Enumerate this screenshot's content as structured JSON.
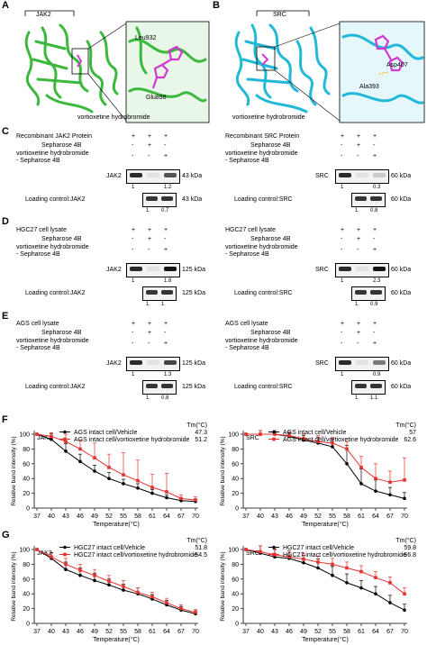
{
  "panel_letters": {
    "A": "A",
    "B": "B",
    "C": "C",
    "D": "D",
    "E": "E",
    "F": "F",
    "G": "G"
  },
  "structures": {
    "A": {
      "protein": "JAK2",
      "residue1": "Leu932",
      "residue2": "Glu898",
      "ligand": "vortioxetine hydrobromide",
      "color": "#3cb83c"
    },
    "B": {
      "protein": "SRC",
      "residue1": "Asp407",
      "residue2": "Ala393",
      "ligand": "vortioxetine hydrobromide",
      "color": "#22b8d8"
    }
  },
  "blots": {
    "C_left": {
      "header": "Recombinant JAK2 Protein",
      "rows": [
        {
          "label": "Sepharose 4B",
          "signs": [
            "-",
            "+",
            "-"
          ]
        },
        {
          "label": "vortioxetine hydrobromide\n- Sepharose 4B",
          "signs": [
            "-",
            "-",
            "+"
          ]
        }
      ],
      "target": "JAK2",
      "target_kda": "43 kDa",
      "target_q": [
        "1",
        "",
        "1.2"
      ],
      "loading": "Loading control:JAK2",
      "loading_kda": "43 kDa",
      "loading_q": [
        "1",
        "0.7"
      ],
      "header_signs": [
        "+",
        "+",
        "+"
      ]
    },
    "C_right": {
      "header": "Recombinant SRC Protein",
      "rows": [
        {
          "label": "Sepharose 4B",
          "signs": [
            "-",
            "+",
            "-"
          ]
        },
        {
          "label": "vortioxetine hydrobromide\n- Sepharose 4B",
          "signs": [
            "-",
            "-",
            "+"
          ]
        }
      ],
      "target": "SRC",
      "target_kda": "60 kDa",
      "target_q": [
        "1",
        "",
        "0.3"
      ],
      "loading": "Loading control:SRC",
      "loading_kda": "60 kDa",
      "loading_q": [
        "1",
        "0.8"
      ],
      "header_signs": [
        "+",
        "+",
        "+"
      ]
    },
    "D_left": {
      "header": "HGC27 cell lysate",
      "rows": [
        {
          "label": "Sepharose 4B",
          "signs": [
            "-",
            "+",
            "-"
          ]
        },
        {
          "label": "vortioxetine hydrobromide\n- Sepharose 4B",
          "signs": [
            "-",
            "-",
            "+"
          ]
        }
      ],
      "target": "JAK2",
      "target_kda": "125 kDa",
      "target_q": [
        "1",
        "",
        "1.8"
      ],
      "loading": "Loading control:JAK2",
      "loading_kda": "125 kDa",
      "loading_q": [
        "1",
        "1"
      ],
      "header_signs": [
        "+",
        "+",
        "+"
      ]
    },
    "D_right": {
      "header": "HGC27 cell lysate",
      "rows": [
        {
          "label": "Sepharose 4B",
          "signs": [
            "-",
            "+",
            "-"
          ]
        },
        {
          "label": "vortioxetine hydrobromide\n- Sepharose 4B",
          "signs": [
            "-",
            "-",
            "+"
          ]
        }
      ],
      "target": "SRC",
      "target_kda": "60 kDa",
      "target_q": [
        "1",
        "",
        "2.3"
      ],
      "loading": "Loading control:SRC",
      "loading_kda": "60 kDa",
      "loading_q": [
        "1",
        "0.9"
      ],
      "header_signs": [
        "+",
        "+",
        "+"
      ]
    },
    "E_left": {
      "header": "AGS cell lysate",
      "rows": [
        {
          "label": "Sepharose 4B",
          "signs": [
            "-",
            "+",
            "-"
          ]
        },
        {
          "label": "vortioxetine hydrobromide\n- Sepharose 4B",
          "signs": [
            "-",
            "-",
            "+"
          ]
        }
      ],
      "target": "JAK2",
      "target_kda": "125 kDa",
      "target_q": [
        "1",
        "",
        "1.3"
      ],
      "loading": "Loading control:JAK2",
      "loading_kda": "125 kDa",
      "loading_q": [
        "1",
        "0.8"
      ],
      "header_signs": [
        "+",
        "+",
        "+"
      ]
    },
    "E_right": {
      "header": "AGS cell lysate",
      "rows": [
        {
          "label": "Sepharose 4B",
          "signs": [
            "-",
            "+",
            "-"
          ]
        },
        {
          "label": "vortioxetine hydrobromide\n- Sepharose 4B",
          "signs": [
            "-",
            "-",
            "+"
          ]
        }
      ],
      "target": "SRC",
      "target_kda": "60 kDa",
      "target_q": [
        "1",
        "",
        "0.9"
      ],
      "loading": "Loading control:SRC",
      "loading_kda": "60 kDa",
      "loading_q": [
        "1",
        "1.1"
      ],
      "header_signs": [
        "+",
        "+",
        "+"
      ]
    }
  },
  "chart_data": [
    {
      "panel": "F",
      "type": "line",
      "title": "JAK2",
      "xlabel": "Temperature(°C)",
      "ylabel": "Relative band intensity (%)",
      "categories": [
        "37",
        "40",
        "43",
        "46",
        "49",
        "52",
        "55",
        "58",
        "61",
        "64",
        "67",
        "70"
      ],
      "ylim": [
        0,
        100
      ],
      "yticks": [
        0,
        20,
        40,
        60,
        80,
        100
      ],
      "tm_header": "Tm(°C)",
      "series": [
        {
          "name": "AGS intact cell/Vehicle",
          "tm": "47.3",
          "color": "#000000",
          "values": [
            100,
            93,
            77,
            63,
            50,
            40,
            33,
            27,
            20,
            14,
            10,
            9
          ],
          "err": [
            0,
            8,
            10,
            10,
            8,
            8,
            6,
            6,
            5,
            4,
            3,
            3
          ]
        },
        {
          "name": "AGS intact cell/vortioxetine hydrobromide",
          "tm": "51.2",
          "color": "#e8302c",
          "values": [
            100,
            97,
            90,
            80,
            68,
            55,
            45,
            37,
            28,
            22,
            13,
            11
          ],
          "err": [
            0,
            5,
            10,
            12,
            20,
            18,
            30,
            28,
            18,
            25,
            5,
            4
          ]
        }
      ]
    },
    {
      "panel": "F",
      "type": "line",
      "title": "SRC",
      "xlabel": "Temperature(°C)",
      "ylabel": "Relative band intensity (%)",
      "categories": [
        "37",
        "40",
        "43",
        "46",
        "49",
        "52",
        "55",
        "58",
        "61",
        "64",
        "67",
        "70"
      ],
      "ylim": [
        0,
        100
      ],
      "yticks": [
        0,
        20,
        40,
        60,
        80,
        100
      ],
      "tm_header": "Tm(°C)",
      "series": [
        {
          "name": "AGS intact cell/Vehicle",
          "tm": "57",
          "color": "#000000",
          "values": [
            100,
            100,
            100,
            97,
            92,
            88,
            83,
            60,
            33,
            23,
            18,
            13
          ],
          "err": [
            0,
            5,
            5,
            5,
            6,
            8,
            10,
            25,
            20,
            15,
            10,
            8
          ]
        },
        {
          "name": "AGS intact cell/vortioxetine hydrobromide",
          "tm": "62.6",
          "color": "#e8302c",
          "values": [
            100,
            100,
            100,
            98,
            94,
            90,
            88,
            80,
            55,
            40,
            35,
            38
          ],
          "err": [
            0,
            5,
            5,
            5,
            6,
            8,
            8,
            10,
            15,
            20,
            15,
            30
          ]
        }
      ]
    },
    {
      "panel": "G",
      "type": "line",
      "title": "JAK2",
      "xlabel": "Temperature(°C)",
      "ylabel": "Relative band intensity (%)",
      "categories": [
        "37",
        "40",
        "43",
        "46",
        "49",
        "52",
        "55",
        "58",
        "61",
        "64",
        "67",
        "70"
      ],
      "ylim": [
        0,
        100
      ],
      "yticks": [
        0,
        20,
        40,
        60,
        80,
        100
      ],
      "tm_header": "Tm(°C)",
      "series": [
        {
          "name": "HGC27 intact cell/Vehicle",
          "tm": "51.8",
          "color": "#000000",
          "values": [
            100,
            88,
            73,
            65,
            58,
            52,
            45,
            40,
            33,
            25,
            18,
            13
          ],
          "err": [
            0,
            8,
            10,
            10,
            10,
            8,
            8,
            8,
            6,
            6,
            5,
            4
          ]
        },
        {
          "name": "HGC27 intact cell/vortioxetine hydrobromide",
          "tm": "54.5",
          "color": "#e8302c",
          "values": [
            100,
            90,
            80,
            72,
            65,
            57,
            50,
            42,
            36,
            28,
            20,
            15
          ],
          "err": [
            0,
            5,
            8,
            8,
            8,
            8,
            8,
            6,
            6,
            6,
            5,
            4
          ]
        }
      ]
    },
    {
      "panel": "G",
      "type": "line",
      "title": "SRC",
      "xlabel": "Temperature(°C)",
      "ylabel": "Relative band intensity (%)",
      "categories": [
        "37",
        "40",
        "43",
        "46",
        "49",
        "52",
        "55",
        "58",
        "61",
        "64",
        "67",
        "70"
      ],
      "ylim": [
        0,
        100
      ],
      "yticks": [
        0,
        20,
        40,
        60,
        80,
        100
      ],
      "tm_header": "Tm(°C)",
      "series": [
        {
          "name": "HGC27 intact cell/Vehicle",
          "tm": "59.8",
          "color": "#000000",
          "values": [
            100,
            95,
            90,
            88,
            82,
            75,
            65,
            55,
            48,
            40,
            28,
            18
          ],
          "err": [
            0,
            10,
            10,
            10,
            10,
            12,
            12,
            12,
            10,
            10,
            10,
            8
          ]
        },
        {
          "name": "HGC27 intact cell/vortioxetine hydrobromide",
          "tm": "66.8",
          "color": "#e8302c",
          "values": [
            100,
            97,
            93,
            90,
            87,
            83,
            80,
            75,
            70,
            62,
            55,
            40
          ],
          "err": [
            0,
            8,
            8,
            8,
            8,
            8,
            8,
            8,
            8,
            8,
            8,
            8
          ]
        }
      ]
    }
  ]
}
